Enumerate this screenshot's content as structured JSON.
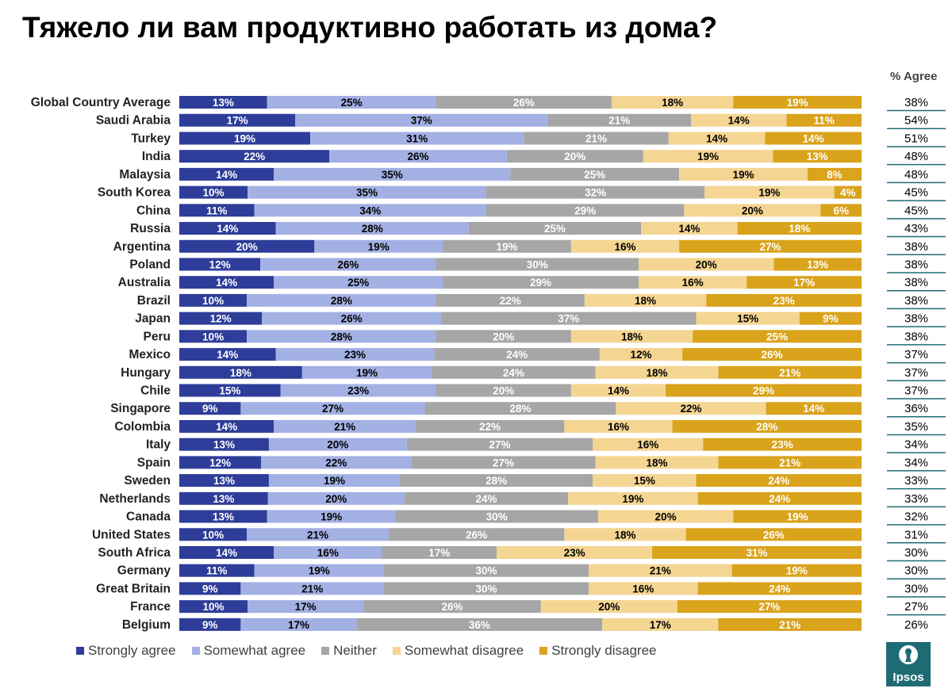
{
  "title": "Тяжело ли вам продуктивно работать из дома?",
  "agree_header": "% Agree",
  "logo_text": "Ipsos",
  "colors": {
    "strongly_agree": "#2e3d99",
    "somewhat_agree": "#a3b0e3",
    "neither": "#a6a6a6",
    "somewhat_disagree": "#f4d592",
    "strongly_disagree": "#d9a31c",
    "agree_line": "#1f6b74",
    "logo": "#1f6b74"
  },
  "legend": [
    {
      "label": "Strongly agree",
      "color": "#2e3d99"
    },
    {
      "label": "Somewhat agree",
      "color": "#a3b0e3"
    },
    {
      "label": "Neither",
      "color": "#a6a6a6"
    },
    {
      "label": "Somewhat disagree",
      "color": "#f4d592"
    },
    {
      "label": "Strongly disagree",
      "color": "#d9a31c"
    }
  ],
  "chart_data": {
    "type": "bar",
    "orientation": "horizontal",
    "stacked": true,
    "title": "Тяжело ли вам продуктивно работать из дома?",
    "legend_position": "bottom",
    "categories": [
      "Global Country Average",
      "Saudi Arabia",
      "Turkey",
      "India",
      "Malaysia",
      "South Korea",
      "China",
      "Russia",
      "Argentina",
      "Poland",
      "Australia",
      "Brazil",
      "Japan",
      "Peru",
      "Mexico",
      "Hungary",
      "Chile",
      "Singapore",
      "Colombia",
      "Italy",
      "Spain",
      "Sweden",
      "Netherlands",
      "Canada",
      "United States",
      "South Africa",
      "Germany",
      "Great Britain",
      "France",
      "Belgium"
    ],
    "series": [
      {
        "name": "Strongly agree",
        "values": [
          13,
          17,
          19,
          22,
          14,
          10,
          11,
          14,
          20,
          12,
          14,
          10,
          12,
          10,
          14,
          18,
          15,
          9,
          14,
          13,
          12,
          13,
          13,
          13,
          10,
          14,
          11,
          9,
          10,
          9
        ]
      },
      {
        "name": "Somewhat agree",
        "values": [
          25,
          37,
          31,
          26,
          35,
          35,
          34,
          28,
          19,
          26,
          25,
          28,
          26,
          28,
          23,
          19,
          23,
          27,
          21,
          20,
          22,
          19,
          20,
          19,
          21,
          16,
          19,
          21,
          17,
          17
        ]
      },
      {
        "name": "Neither",
        "values": [
          26,
          21,
          21,
          20,
          25,
          32,
          29,
          25,
          19,
          30,
          29,
          22,
          37,
          20,
          24,
          24,
          20,
          28,
          22,
          27,
          27,
          28,
          24,
          30,
          26,
          17,
          30,
          30,
          26,
          36
        ]
      },
      {
        "name": "Somewhat disagree",
        "values": [
          18,
          14,
          14,
          19,
          19,
          19,
          20,
          14,
          16,
          20,
          16,
          18,
          15,
          18,
          12,
          18,
          14,
          22,
          16,
          16,
          18,
          15,
          19,
          20,
          18,
          23,
          21,
          16,
          20,
          17
        ]
      },
      {
        "name": "Strongly disagree",
        "values": [
          19,
          11,
          14,
          13,
          8,
          4,
          6,
          18,
          27,
          13,
          17,
          23,
          9,
          25,
          26,
          21,
          29,
          14,
          28,
          23,
          21,
          24,
          24,
          19,
          26,
          31,
          19,
          24,
          27,
          21
        ]
      }
    ],
    "percent_agree": [
      "38%",
      "54%",
      "51%",
      "48%",
      "48%",
      "45%",
      "45%",
      "43%",
      "38%",
      "38%",
      "38%",
      "38%",
      "38%",
      "38%",
      "37%",
      "37%",
      "37%",
      "36%",
      "35%",
      "34%",
      "34%",
      "33%",
      "33%",
      "32%",
      "31%",
      "30%",
      "30%",
      "30%",
      "27%",
      "26%"
    ],
    "xlabel": "",
    "ylabel": ""
  }
}
